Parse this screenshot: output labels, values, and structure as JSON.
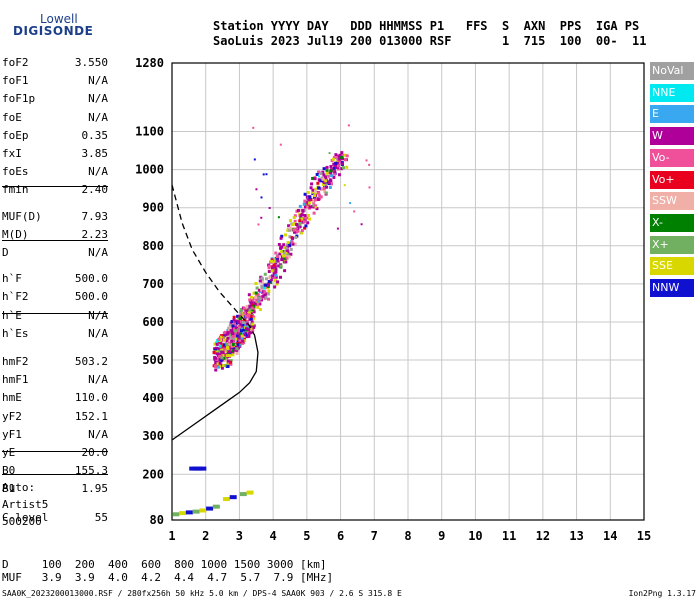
{
  "logo": {
    "line1": "Lowell",
    "line2": "DIGISONDE"
  },
  "header": {
    "line1": "Station YYYY DAY   DDD HHMMSS P1   FFS  S  AXN  PPS  IGA PS",
    "line2": "SaoLuis 2023 Jul19 200 013000 RSF       1  715  100  00-  11"
  },
  "params": [
    {
      "label": "foF2",
      "value": "3.550"
    },
    {
      "label": "foF1",
      "value": "N/A"
    },
    {
      "label": "foF1p",
      "value": "N/A"
    },
    {
      "label": "foE",
      "value": "N/A"
    },
    {
      "label": "foEp",
      "value": "0.35"
    },
    {
      "label": "fxI",
      "value": "3.85"
    },
    {
      "label": "foEs",
      "value": "N/A"
    },
    {
      "label": "fmin",
      "value": "2.40"
    },
    {
      "label": "MUF(D)",
      "value": "7.93"
    },
    {
      "label": "M(D)",
      "value": "2.23"
    },
    {
      "label": "D",
      "value": "N/A"
    },
    {
      "label": "h`F",
      "value": "500.0"
    },
    {
      "label": "h`F2",
      "value": "500.0"
    },
    {
      "label": "h`E",
      "value": "N/A"
    },
    {
      "label": "h`Es",
      "value": "N/A"
    },
    {
      "label": "hmF2",
      "value": "503.2"
    },
    {
      "label": "hmF1",
      "value": "N/A"
    },
    {
      "label": "hmE",
      "value": "110.0"
    },
    {
      "label": "yF2",
      "value": "152.1"
    },
    {
      "label": "yF1",
      "value": "N/A"
    },
    {
      "label": "yE",
      "value": "20.0"
    },
    {
      "label": "B0",
      "value": "155.3"
    },
    {
      "label": "B1",
      "value": "1.95"
    },
    {
      "label": "C-level",
      "value": "55"
    }
  ],
  "auto": {
    "line1": "Auto:",
    "line2": "Artist5",
    "line3": "500200"
  },
  "legend": [
    {
      "label": "NoVal",
      "color": "#a0a0a0"
    },
    {
      "label": "NNE",
      "color": "#00e8f0"
    },
    {
      "label": "E",
      "color": "#3aa8f0"
    },
    {
      "label": "W",
      "color": "#b0009a"
    },
    {
      "label": "Vo-",
      "color": "#f0509a"
    },
    {
      "label": "Vo+",
      "color": "#e8001e"
    },
    {
      "label": "SSW",
      "color": "#f0b0a8"
    },
    {
      "label": "X-",
      "color": "#008000"
    },
    {
      "label": "X+",
      "color": "#70b060"
    },
    {
      "label": "SSE",
      "color": "#d8d800"
    },
    {
      "label": "NNW",
      "color": "#1010d0"
    }
  ],
  "muf_table": {
    "line1": "D     100  200  400  600  800 1000 1500 3000 [km]",
    "line2": "MUF   3.9  3.9  4.0  4.2  4.4  4.7  5.7  7.9 [MHz]"
  },
  "footer": {
    "left": "SAA0K_2023200013000.RSF / 280fx256h 50 kHz 5.0 km / DPS-4 SAA0K 903 / 2.6 S 315.8 E",
    "right": "Ion2Png 1.3.17"
  },
  "chart_data": {
    "type": "scatter",
    "x_ticks": [
      1,
      2,
      3,
      4,
      5,
      6,
      7,
      8,
      9,
      10,
      11,
      12,
      13,
      14,
      15
    ],
    "y_ticks": [
      80,
      200,
      300,
      400,
      500,
      600,
      700,
      800,
      900,
      1000,
      1100,
      1280
    ],
    "xlim": [
      1,
      15
    ],
    "ylim": [
      80,
      1280
    ],
    "grid": true,
    "legend_position": "right",
    "ordinary_trace": [
      [
        2.4,
        490
      ],
      [
        2.6,
        520
      ],
      [
        2.8,
        560
      ],
      [
        3.0,
        600
      ],
      [
        3.3,
        640
      ],
      [
        3.6,
        680
      ],
      [
        3.9,
        720
      ],
      [
        4.2,
        770
      ],
      [
        4.5,
        830
      ],
      [
        4.8,
        880
      ],
      [
        5.1,
        930
      ],
      [
        5.4,
        970
      ],
      [
        5.7,
        1000
      ],
      [
        6.0,
        1030
      ]
    ],
    "virtual_height_curve": [
      [
        1.0,
        960
      ],
      [
        1.3,
        860
      ],
      [
        1.6,
        790
      ],
      [
        2.0,
        730
      ],
      [
        2.4,
        680
      ],
      [
        2.8,
        640
      ],
      [
        3.1,
        610
      ],
      [
        3.3,
        590
      ],
      [
        3.45,
        565
      ],
      [
        3.55,
        520
      ],
      [
        3.5,
        470
      ],
      [
        3.3,
        440
      ],
      [
        3.0,
        415
      ],
      [
        2.6,
        390
      ],
      [
        2.2,
        365
      ],
      [
        1.8,
        340
      ],
      [
        1.4,
        315
      ],
      [
        1.0,
        290
      ]
    ],
    "spread_f_cluster": {
      "x_range": [
        2.2,
        3.4
      ],
      "y_range": [
        470,
        620
      ]
    },
    "es_traces": [
      [
        1.6,
        215
      ],
      [
        1.7,
        215
      ],
      [
        1.8,
        215
      ],
      [
        1.9,
        215
      ],
      [
        1.1,
        95
      ],
      [
        1.3,
        98
      ],
      [
        1.5,
        100
      ],
      [
        1.7,
        102
      ],
      [
        1.9,
        105
      ],
      [
        2.1,
        110
      ],
      [
        2.3,
        115
      ],
      [
        2.6,
        135
      ],
      [
        2.8,
        140
      ],
      [
        3.1,
        148
      ],
      [
        3.3,
        152
      ]
    ]
  }
}
